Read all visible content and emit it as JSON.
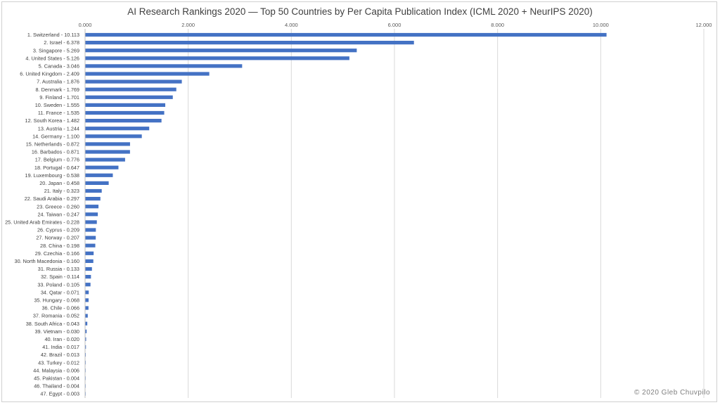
{
  "chart_data": {
    "type": "bar",
    "orientation": "horizontal",
    "title": "AI Research Rankings 2020 — Top 50 Countries by Per Capita Publication Index (ICML 2020 + NeurIPS 2020)",
    "xlim": [
      0,
      12000
    ],
    "xticks": [
      0,
      2000,
      4000,
      6000,
      8000,
      10000,
      12000
    ],
    "xtick_labels": [
      "0.000",
      "2.000",
      "4.000",
      "6.000",
      "8.000",
      "10.000",
      "12.000"
    ],
    "grid": "vertical",
    "legend": "none",
    "bar_color": "#4472c4",
    "categories": [
      "1. Switzerland - 10.113",
      "2. Israel - 6.378",
      "3. Singapore - 5.269",
      "4. United States - 5.126",
      "5. Canada - 3.046",
      "6. United Kingdom - 2.409",
      "7. Australia - 1.876",
      "8. Denmark - 1.769",
      "9. Finland - 1.701",
      "10. Sweden - 1.555",
      "11. France - 1.535",
      "12. South Korea - 1.482",
      "13. Austria - 1.244",
      "14. Germany - 1.100",
      "15. Netherlands - 0.872",
      "16. Barbados - 0.871",
      "17. Belgium - 0.776",
      "18. Portugal - 0.647",
      "19. Luxembourg - 0.538",
      "20. Japan - 0.458",
      "21. Italy - 0.323",
      "22. Saudi Arabia - 0.297",
      "23. Greece - 0.260",
      "24. Taiwan - 0.247",
      "25. United Arab Emirates - 0.228",
      "26. Cyprus - 0.209",
      "27. Norway - 0.207",
      "28. China - 0.198",
      "29. Czechia - 0.166",
      "30. North Macedonia - 0.160",
      "31. Russia - 0.133",
      "32. Spain - 0.114",
      "33. Poland - 0.105",
      "34. Qatar - 0.071",
      "35. Hungary - 0.068",
      "36. Chile - 0.066",
      "37. Romania - 0.052",
      "38. South Africa - 0.043",
      "39. Vietnam - 0.030",
      "40. Iran - 0.020",
      "41. India - 0.017",
      "42. Brazil - 0.013",
      "43. Turkey - 0.012",
      "44. Malaysia - 0.006",
      "45. Pakistan - 0.004",
      "46. Thailand - 0.004",
      "47. Egypt - 0.003"
    ],
    "values": [
      10113,
      6378,
      5269,
      5126,
      3046,
      2409,
      1876,
      1769,
      1701,
      1555,
      1535,
      1482,
      1244,
      1100,
      872,
      871,
      776,
      647,
      538,
      458,
      323,
      297,
      260,
      247,
      228,
      209,
      207,
      198,
      166,
      160,
      133,
      114,
      105,
      71,
      68,
      66,
      52,
      43,
      30,
      20,
      17,
      13,
      12,
      6,
      4,
      4,
      3
    ]
  },
  "copyright": "© 2020 Gleb Chuvpilo"
}
